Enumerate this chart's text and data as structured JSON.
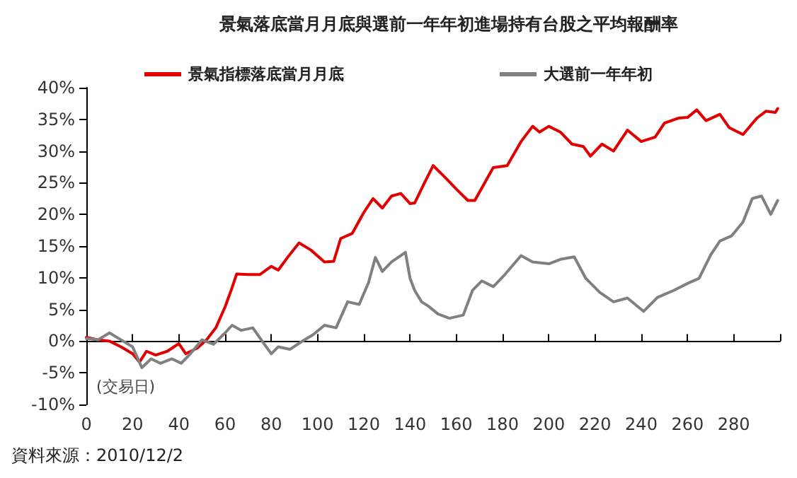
{
  "chart_data": {
    "type": "line",
    "title": "景氣落底當月月底與選前一年年初進場持有台股之平均報酬率",
    "xlabel": "(交易日)",
    "annotations": [
      "資料來源：2010/12/2"
    ],
    "xlim": [
      0,
      300
    ],
    "xticks": [
      0,
      20,
      40,
      60,
      80,
      100,
      120,
      140,
      160,
      180,
      200,
      220,
      240,
      260,
      280,
      {
        "value": 300,
        "label": null
      }
    ],
    "ylim": [
      -10,
      40
    ],
    "yticks": [
      {
        "value": -10,
        "label": "-10%"
      },
      {
        "value": -5,
        "label": "-5%"
      },
      {
        "value": 0,
        "label": "0%"
      },
      {
        "value": 5,
        "label": "5%"
      },
      {
        "value": 10,
        "label": "10%"
      },
      {
        "value": 15,
        "label": "15%"
      },
      {
        "value": 20,
        "label": "20%"
      },
      {
        "value": 25,
        "label": "25%"
      },
      {
        "value": 30,
        "label": "30%"
      },
      {
        "value": 35,
        "label": "35%"
      },
      {
        "value": 40,
        "label": "40%"
      }
    ],
    "legend": "top",
    "marker": "none",
    "line_style": "solid",
    "series": [
      {
        "name": "景氣指標落底當月月底",
        "color": "#e00000",
        "x": [
          0,
          5,
          10,
          15,
          20,
          23,
          26,
          30,
          35,
          40,
          43,
          48,
          52,
          56,
          60,
          63,
          65,
          70,
          75,
          80,
          83,
          87,
          92,
          97,
          103,
          107,
          110,
          115,
          120,
          124,
          128,
          132,
          136,
          140,
          142,
          146,
          150,
          155,
          160,
          165,
          168,
          172,
          176,
          182,
          188,
          193,
          196,
          200,
          205,
          210,
          215,
          218,
          223,
          228,
          234,
          240,
          246,
          250,
          256,
          260,
          264,
          268,
          274,
          278,
          284,
          290,
          294,
          298,
          299
        ],
        "values": [
          0.6,
          0.2,
          0,
          -0.9,
          -2,
          -3.3,
          -1.6,
          -2.2,
          -1.6,
          -0.4,
          -2,
          -1.1,
          0.2,
          2.1,
          5.4,
          8.4,
          10.6,
          10.5,
          10.5,
          11.8,
          11.2,
          13.2,
          15.5,
          14.4,
          12.5,
          12.6,
          16.2,
          17,
          20.3,
          22.5,
          21,
          22.9,
          23.3,
          21.7,
          21.8,
          24.8,
          27.7,
          25.9,
          24,
          22.2,
          22.2,
          24.8,
          27.4,
          27.7,
          31.5,
          33.9,
          33,
          33.9,
          33,
          31.1,
          30.7,
          29.2,
          31.1,
          30,
          33.3,
          31.5,
          32.2,
          34.4,
          35.2,
          35.3,
          36.5,
          34.8,
          35.8,
          33.7,
          32.6,
          35.2,
          36.3,
          36.1,
          36.7
        ]
      },
      {
        "name": "大選前一年年初",
        "color": "#808080",
        "x": [
          0,
          5,
          10,
          15,
          20,
          24,
          28,
          32,
          37,
          41,
          45,
          50,
          55,
          60,
          63,
          67,
          72,
          77,
          80,
          83,
          88,
          93,
          98,
          103,
          108,
          113,
          118,
          122,
          125,
          128,
          132,
          138,
          140,
          142,
          145,
          148,
          152,
          157,
          163,
          167,
          171,
          176,
          181,
          188,
          193,
          200,
          205,
          211,
          216,
          222,
          228,
          234,
          241,
          247,
          254,
          260,
          265,
          270,
          274,
          279,
          284,
          288,
          292,
          296,
          299
        ],
        "values": [
          0.4,
          0.2,
          1.3,
          0.2,
          -0.9,
          -4.2,
          -2.8,
          -3.5,
          -2.8,
          -3.5,
          -2,
          0.2,
          -0.5,
          1.3,
          2.5,
          1.7,
          2.1,
          -0.5,
          -2,
          -0.9,
          -1.3,
          -0.1,
          1,
          2.5,
          2.1,
          6.2,
          5.8,
          9.2,
          13.2,
          11,
          12.5,
          14,
          9.9,
          8,
          6.2,
          5.5,
          4.3,
          3.6,
          4.1,
          8,
          9.5,
          8.6,
          10.5,
          13.5,
          12.5,
          12.2,
          12.9,
          13.3,
          9.9,
          7.7,
          6.2,
          6.8,
          4.7,
          6.9,
          8,
          9.1,
          9.9,
          13.6,
          15.8,
          16.6,
          18.8,
          22.5,
          22.9,
          20,
          22.2
        ]
      }
    ]
  }
}
